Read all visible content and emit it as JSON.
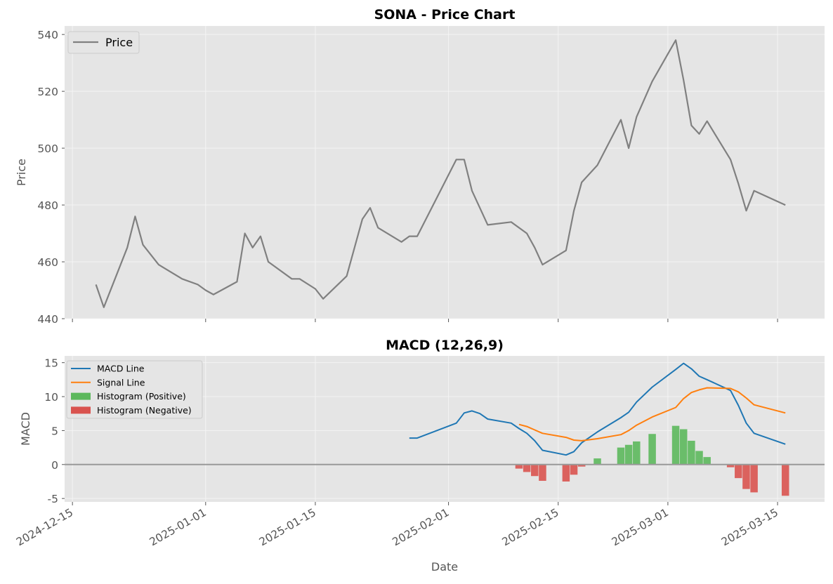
{
  "chart_data": [
    {
      "type": "line",
      "title": "SONA - Price Chart",
      "xlabel": "",
      "ylabel": "Price",
      "ylim": [
        440,
        543
      ],
      "xlim": [
        "2024-12-14",
        "2025-03-21"
      ],
      "yticks": [
        440,
        460,
        480,
        500,
        520,
        540
      ],
      "grid": true,
      "legend": "top-left",
      "colors": {
        "price": "#808080",
        "plot_bg": "#e5e5e5",
        "grid": "#f2f2f2"
      },
      "series": [
        {
          "name": "Price",
          "x": [
            "2024-12-18",
            "2024-12-19",
            "2024-12-22",
            "2024-12-23",
            "2024-12-24",
            "2024-12-26",
            "2024-12-29",
            "2024-12-31",
            "2025-01-01",
            "2025-01-02",
            "2025-01-05",
            "2025-01-06",
            "2025-01-07",
            "2025-01-08",
            "2025-01-09",
            "2025-01-12",
            "2025-01-13",
            "2025-01-15",
            "2025-01-16",
            "2025-01-19",
            "2025-01-21",
            "2025-01-22",
            "2025-01-23",
            "2025-01-26",
            "2025-01-27",
            "2025-01-28",
            "2025-02-02",
            "2025-02-03",
            "2025-02-04",
            "2025-02-06",
            "2025-02-09",
            "2025-02-11",
            "2025-02-12",
            "2025-02-13",
            "2025-02-16",
            "2025-02-17",
            "2025-02-18",
            "2025-02-20",
            "2025-02-23",
            "2025-02-24",
            "2025-02-25",
            "2025-02-27",
            "2025-03-02",
            "2025-03-03",
            "2025-03-04",
            "2025-03-05",
            "2025-03-06",
            "2025-03-09",
            "2025-03-10",
            "2025-03-11",
            "2025-03-12",
            "2025-03-16"
          ],
          "values": [
            452,
            444,
            465,
            476,
            466,
            459,
            454,
            452,
            450,
            448.5,
            453,
            470,
            465,
            469,
            460,
            454,
            454,
            450.5,
            447,
            455,
            475,
            479,
            472,
            467,
            469,
            469,
            496,
            496,
            485,
            473,
            474,
            470,
            465,
            459,
            464,
            478,
            488,
            494,
            510,
            500,
            511,
            523.5,
            538,
            524,
            508,
            505,
            509.5,
            496,
            487.5,
            478,
            485,
            480
          ]
        }
      ]
    },
    {
      "type": "line",
      "title": "MACD (12,26,9)",
      "xlabel": "Date",
      "ylabel": "MACD",
      "ylim": [
        -5.5,
        16
      ],
      "xlim": [
        "2024-12-14",
        "2025-03-21"
      ],
      "yticks": [
        -5,
        0,
        5,
        10,
        15
      ],
      "xticks": [
        "2024-12-15",
        "2025-01-01",
        "2025-01-15",
        "2025-02-01",
        "2025-02-15",
        "2025-03-01",
        "2025-03-15"
      ],
      "grid": true,
      "legend": "top-left",
      "zero_line": 0,
      "colors": {
        "macd": "#1f77b4",
        "signal": "#ff7f0e",
        "hist_pos": "#5cb85c",
        "hist_neg": "#d9534f",
        "zero": "#999999"
      },
      "series": [
        {
          "name": "MACD Line",
          "x": [
            "2025-01-27",
            "2025-01-28",
            "2025-02-02",
            "2025-02-03",
            "2025-02-04",
            "2025-02-05",
            "2025-02-06",
            "2025-02-09",
            "2025-02-10",
            "2025-02-11",
            "2025-02-12",
            "2025-02-13",
            "2025-02-16",
            "2025-02-17",
            "2025-02-18",
            "2025-02-20",
            "2025-02-23",
            "2025-02-24",
            "2025-02-25",
            "2025-02-27",
            "2025-03-02",
            "2025-03-03",
            "2025-03-04",
            "2025-03-05",
            "2025-03-06",
            "2025-03-09",
            "2025-03-10",
            "2025-03-11",
            "2025-03-12",
            "2025-03-16"
          ],
          "values": [
            3.9,
            3.9,
            6.1,
            7.6,
            7.9,
            7.5,
            6.7,
            6.1,
            5.3,
            4.6,
            3.5,
            2.1,
            1.4,
            1.9,
            3.2,
            4.8,
            6.9,
            7.7,
            9.2,
            11.4,
            14.0,
            14.9,
            14.1,
            13.0,
            12.5,
            10.9,
            8.7,
            6.1,
            4.6,
            3.0
          ]
        },
        {
          "name": "Signal Line",
          "x": [
            "2025-02-10",
            "2025-02-11",
            "2025-02-12",
            "2025-02-13",
            "2025-02-16",
            "2025-02-17",
            "2025-02-18",
            "2025-02-20",
            "2025-02-23",
            "2025-02-24",
            "2025-02-25",
            "2025-02-27",
            "2025-03-02",
            "2025-03-03",
            "2025-03-04",
            "2025-03-05",
            "2025-03-06",
            "2025-03-09",
            "2025-03-10",
            "2025-03-11",
            "2025-03-12",
            "2025-03-16"
          ],
          "values": [
            5.9,
            5.6,
            5.1,
            4.6,
            4.0,
            3.6,
            3.5,
            3.8,
            4.4,
            5.0,
            5.8,
            7.0,
            8.4,
            9.7,
            10.6,
            11.0,
            11.3,
            11.2,
            10.7,
            9.8,
            8.8,
            7.6
          ]
        },
        {
          "name": "Histogram (Positive)",
          "x": [
            "2025-02-20",
            "2025-02-23",
            "2025-02-24",
            "2025-02-25",
            "2025-02-27",
            "2025-03-02",
            "2025-03-03",
            "2025-03-04",
            "2025-03-05",
            "2025-03-06"
          ],
          "values": [
            0.9,
            2.5,
            2.9,
            3.4,
            4.5,
            5.7,
            5.2,
            3.5,
            2.0,
            1.1
          ]
        },
        {
          "name": "Histogram (Negative)",
          "x": [
            "2025-02-10",
            "2025-02-11",
            "2025-02-12",
            "2025-02-13",
            "2025-02-16",
            "2025-02-17",
            "2025-02-18",
            "2025-03-09",
            "2025-03-10",
            "2025-03-11",
            "2025-03-12",
            "2025-03-16"
          ],
          "values": [
            -0.6,
            -1.1,
            -1.7,
            -2.4,
            -2.5,
            -1.5,
            -0.3,
            -0.4,
            -2.0,
            -3.6,
            -4.1,
            -4.6
          ]
        }
      ]
    }
  ]
}
